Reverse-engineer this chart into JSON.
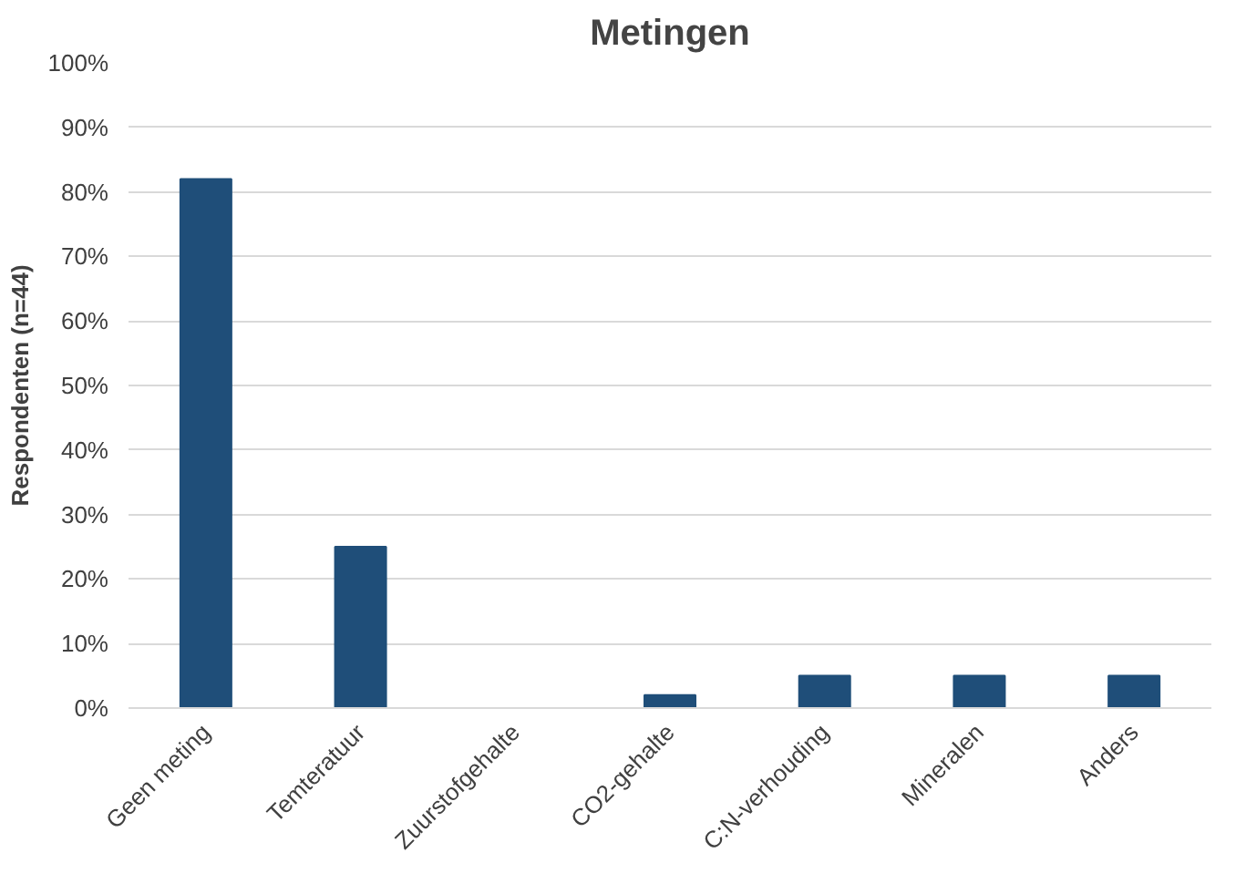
{
  "chart_data": {
    "type": "bar",
    "title": "Metingen",
    "ylabel": "Respondenten (n=44)",
    "categories": [
      "Geen meting",
      "Temteratuur",
      "Zuurstofgehalte",
      "CO2-gehalte",
      "C:N-verhouding",
      "Mineralen",
      "Anders"
    ],
    "values": [
      82,
      25,
      0,
      2,
      5,
      5,
      5
    ],
    "color": "#1f4e79",
    "ylim": [
      0,
      100
    ],
    "yticks": [
      {
        "value": 0,
        "label": "0%"
      },
      {
        "value": 10,
        "label": "10%"
      },
      {
        "value": 20,
        "label": "20%"
      },
      {
        "value": 30,
        "label": "30%"
      },
      {
        "value": 40,
        "label": "40%"
      },
      {
        "value": 50,
        "label": "50%"
      },
      {
        "value": 60,
        "label": "60%"
      },
      {
        "value": 70,
        "label": "70%"
      },
      {
        "value": 80,
        "label": "80%"
      },
      {
        "value": 90,
        "label": "90%"
      },
      {
        "value": 100,
        "label": "100%"
      }
    ],
    "grid": "y"
  }
}
